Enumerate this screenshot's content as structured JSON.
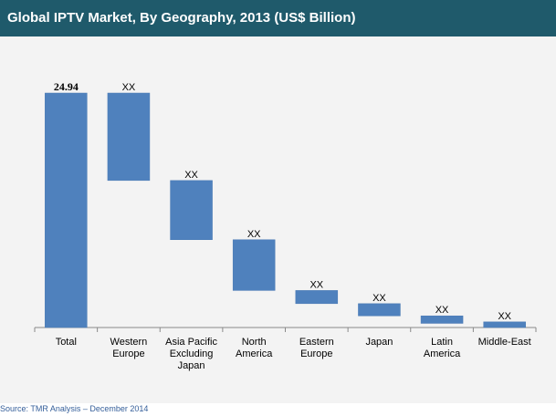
{
  "chart_data": {
    "type": "bar",
    "subtype": "waterfall",
    "title": "Global IPTV Market, By Geography, 2013 (US$ Billion)",
    "categories": [
      "Total",
      "Western Europe",
      "Asia Pacific Excluding Japan",
      "North America",
      "Eastern Europe",
      "Japan",
      "Latin America",
      "Middle-East"
    ],
    "category_lines": [
      [
        "Total"
      ],
      [
        "Western",
        "Europe"
      ],
      [
        "Asia Pacific",
        "Excluding",
        "Japan"
      ],
      [
        "North",
        "America"
      ],
      [
        "Eastern",
        "Europe"
      ],
      [
        "Japan"
      ],
      [
        "Latin",
        "America"
      ],
      [
        "Middle-East"
      ]
    ],
    "values": [
      24.94,
      9.3,
      6.3,
      5.4,
      1.4,
      1.3,
      0.8,
      0.6
    ],
    "bases": [
      0,
      15.64,
      9.34,
      3.94,
      2.54,
      1.24,
      0.44,
      0
    ],
    "data_labels": [
      "24.94",
      "XX",
      "XX",
      "XX",
      "XX",
      "XX",
      "XX",
      "XX"
    ],
    "ylim": [
      0,
      24.94
    ],
    "xlabel": "",
    "ylabel": "",
    "legend": "none",
    "grid": false
  },
  "source": "Source: TMR Analysis – December 2014",
  "colors": {
    "header": "#1f5a6b",
    "bar": "#4f81bd",
    "bar_border": "#4a7ab4",
    "panel": "#f3f3f3",
    "axis": "#8a8a8a",
    "source_text": "#355f9a"
  }
}
